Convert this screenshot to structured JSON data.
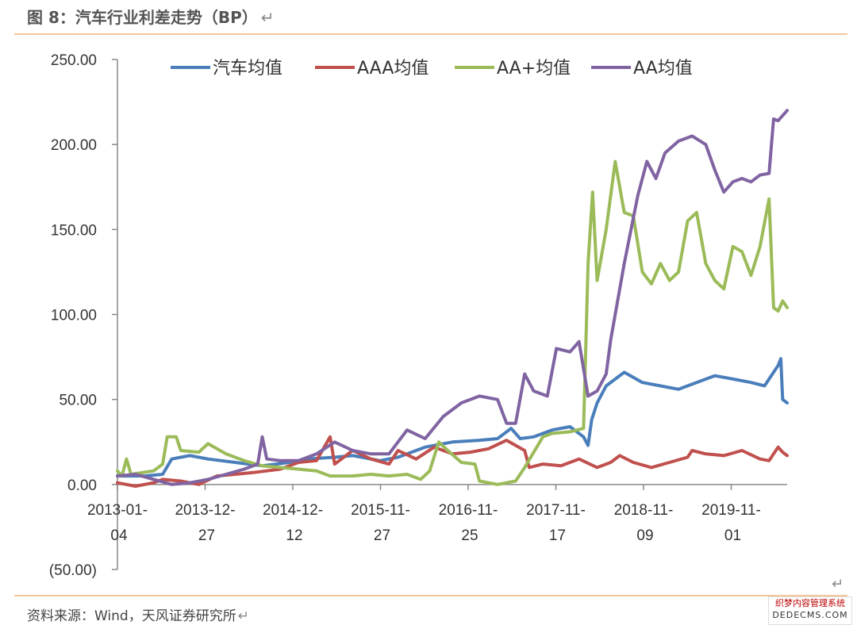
{
  "figure": {
    "title": "图 8：汽车行业利差走势（BP）",
    "title_return_mark": "↵",
    "source": "资料来源：Wind，天风证券研究所",
    "source_return_mark": "↵",
    "corner_return_mark": "↵",
    "watermark_line1": "织梦内容管理系统",
    "watermark_line2": "DEDECMS.COM"
  },
  "chart_data": {
    "type": "line",
    "title": "汽车行业利差走势（BP）",
    "xlabel": "",
    "ylabel": "",
    "ylim": [
      -50,
      250
    ],
    "y_ticks": [
      250,
      200,
      150,
      100,
      50,
      0,
      -50
    ],
    "y_tick_labels": [
      "250.00",
      "200.00",
      "150.00",
      "100.00",
      "50.00",
      "0.00",
      "(50.00)"
    ],
    "y_tick_colors": [
      "#333333",
      "#333333",
      "#333333",
      "#333333",
      "#333333",
      "#333333",
      "#e03030"
    ],
    "x_tick_labels": [
      [
        "2013-01-",
        "04"
      ],
      [
        "2013-12-",
        "27"
      ],
      [
        "2014-12-",
        "12"
      ],
      [
        "2015-11-",
        "27"
      ],
      [
        "2016-11-",
        "25"
      ],
      [
        "2017-11-",
        "17"
      ],
      [
        "2018-11-",
        "09"
      ],
      [
        "2019-11-",
        "01"
      ]
    ],
    "x_start": 2013.0,
    "x_end": 2020.4,
    "legend_position": "top",
    "series": [
      {
        "name": "汽车均值",
        "color": "#4a7ebb",
        "points": [
          [
            2013.0,
            5
          ],
          [
            2013.3,
            5
          ],
          [
            2013.5,
            6
          ],
          [
            2013.6,
            15
          ],
          [
            2013.8,
            17
          ],
          [
            2014.0,
            15
          ],
          [
            2014.3,
            13
          ],
          [
            2014.6,
            11
          ],
          [
            2014.9,
            13
          ],
          [
            2015.1,
            15
          ],
          [
            2015.4,
            16
          ],
          [
            2015.6,
            17
          ],
          [
            2015.9,
            14
          ],
          [
            2016.1,
            16
          ],
          [
            2016.4,
            22
          ],
          [
            2016.7,
            25
          ],
          [
            2017.0,
            26
          ],
          [
            2017.2,
            27
          ],
          [
            2017.35,
            33
          ],
          [
            2017.45,
            27
          ],
          [
            2017.6,
            28
          ],
          [
            2017.8,
            32
          ],
          [
            2018.0,
            34
          ],
          [
            2018.15,
            28
          ],
          [
            2018.2,
            23
          ],
          [
            2018.24,
            38
          ],
          [
            2018.3,
            48
          ],
          [
            2018.4,
            58
          ],
          [
            2018.6,
            66
          ],
          [
            2018.8,
            60
          ],
          [
            2019.0,
            58
          ],
          [
            2019.2,
            56
          ],
          [
            2019.4,
            60
          ],
          [
            2019.6,
            64
          ],
          [
            2019.8,
            62
          ],
          [
            2020.0,
            60
          ],
          [
            2020.15,
            58
          ],
          [
            2020.2,
            62
          ],
          [
            2020.3,
            70
          ],
          [
            2020.33,
            74
          ],
          [
            2020.35,
            50
          ],
          [
            2020.4,
            48
          ]
        ]
      },
      {
        "name": "AAA均值",
        "color": "#c0504d",
        "points": [
          [
            2013.0,
            1
          ],
          [
            2013.2,
            -1
          ],
          [
            2013.4,
            1
          ],
          [
            2013.5,
            3
          ],
          [
            2013.7,
            2
          ],
          [
            2013.9,
            0
          ],
          [
            2014.1,
            5
          ],
          [
            2014.3,
            6
          ],
          [
            2014.5,
            7
          ],
          [
            2014.8,
            9
          ],
          [
            2015.0,
            13
          ],
          [
            2015.2,
            14
          ],
          [
            2015.35,
            28
          ],
          [
            2015.4,
            12
          ],
          [
            2015.6,
            20
          ],
          [
            2015.8,
            15
          ],
          [
            2016.0,
            12
          ],
          [
            2016.1,
            20
          ],
          [
            2016.3,
            15
          ],
          [
            2016.5,
            22
          ],
          [
            2016.7,
            18
          ],
          [
            2016.9,
            19
          ],
          [
            2017.1,
            21
          ],
          [
            2017.3,
            26
          ],
          [
            2017.5,
            20
          ],
          [
            2017.55,
            10
          ],
          [
            2017.7,
            12
          ],
          [
            2017.9,
            11
          ],
          [
            2018.1,
            15
          ],
          [
            2018.3,
            10
          ],
          [
            2018.45,
            13
          ],
          [
            2018.55,
            17
          ],
          [
            2018.7,
            13
          ],
          [
            2018.9,
            10
          ],
          [
            2019.1,
            13
          ],
          [
            2019.3,
            16
          ],
          [
            2019.35,
            20
          ],
          [
            2019.5,
            18
          ],
          [
            2019.7,
            17
          ],
          [
            2019.9,
            20
          ],
          [
            2020.1,
            15
          ],
          [
            2020.2,
            14
          ],
          [
            2020.3,
            22
          ],
          [
            2020.35,
            19
          ],
          [
            2020.4,
            17
          ]
        ]
      },
      {
        "name": "AA+均值",
        "color": "#9bbb59",
        "points": [
          [
            2013.0,
            8
          ],
          [
            2013.05,
            5
          ],
          [
            2013.1,
            15
          ],
          [
            2013.15,
            6
          ],
          [
            2013.4,
            8
          ],
          [
            2013.5,
            12
          ],
          [
            2013.55,
            28
          ],
          [
            2013.65,
            28
          ],
          [
            2013.7,
            20
          ],
          [
            2013.9,
            19
          ],
          [
            2014.0,
            24
          ],
          [
            2014.2,
            18
          ],
          [
            2014.4,
            14
          ],
          [
            2014.6,
            11
          ],
          [
            2014.8,
            10
          ],
          [
            2015.0,
            9
          ],
          [
            2015.2,
            8
          ],
          [
            2015.35,
            5
          ],
          [
            2015.6,
            5
          ],
          [
            2015.8,
            6
          ],
          [
            2016.0,
            5
          ],
          [
            2016.2,
            6
          ],
          [
            2016.35,
            3
          ],
          [
            2016.45,
            8
          ],
          [
            2016.55,
            25
          ],
          [
            2016.65,
            20
          ],
          [
            2016.8,
            13
          ],
          [
            2016.95,
            12
          ],
          [
            2017.0,
            2
          ],
          [
            2017.2,
            0
          ],
          [
            2017.4,
            2
          ],
          [
            2017.5,
            10
          ],
          [
            2017.7,
            28
          ],
          [
            2017.8,
            30
          ],
          [
            2018.0,
            31
          ],
          [
            2018.15,
            33
          ],
          [
            2018.2,
            130
          ],
          [
            2018.25,
            172
          ],
          [
            2018.3,
            120
          ],
          [
            2018.4,
            150
          ],
          [
            2018.5,
            190
          ],
          [
            2018.6,
            160
          ],
          [
            2018.7,
            158
          ],
          [
            2018.8,
            125
          ],
          [
            2018.9,
            118
          ],
          [
            2019.0,
            130
          ],
          [
            2019.1,
            120
          ],
          [
            2019.2,
            125
          ],
          [
            2019.3,
            155
          ],
          [
            2019.4,
            160
          ],
          [
            2019.5,
            130
          ],
          [
            2019.6,
            120
          ],
          [
            2019.7,
            115
          ],
          [
            2019.8,
            140
          ],
          [
            2019.9,
            137
          ],
          [
            2020.0,
            123
          ],
          [
            2020.1,
            140
          ],
          [
            2020.2,
            168
          ],
          [
            2020.25,
            104
          ],
          [
            2020.3,
            102
          ],
          [
            2020.35,
            108
          ],
          [
            2020.4,
            104
          ]
        ]
      },
      {
        "name": "AA均值",
        "color": "#8064a2",
        "points": [
          [
            2013.0,
            5
          ],
          [
            2013.2,
            6
          ],
          [
            2013.4,
            3
          ],
          [
            2013.6,
            0
          ],
          [
            2013.8,
            1
          ],
          [
            2014.0,
            3
          ],
          [
            2014.2,
            6
          ],
          [
            2014.4,
            9
          ],
          [
            2014.55,
            12
          ],
          [
            2014.6,
            28
          ],
          [
            2014.65,
            15
          ],
          [
            2014.8,
            14
          ],
          [
            2015.0,
            14
          ],
          [
            2015.2,
            18
          ],
          [
            2015.4,
            25
          ],
          [
            2015.6,
            20
          ],
          [
            2015.8,
            18
          ],
          [
            2016.0,
            18
          ],
          [
            2016.2,
            32
          ],
          [
            2016.4,
            27
          ],
          [
            2016.6,
            40
          ],
          [
            2016.8,
            48
          ],
          [
            2017.0,
            52
          ],
          [
            2017.2,
            50
          ],
          [
            2017.3,
            36
          ],
          [
            2017.4,
            36
          ],
          [
            2017.5,
            65
          ],
          [
            2017.6,
            55
          ],
          [
            2017.75,
            52
          ],
          [
            2017.85,
            80
          ],
          [
            2018.0,
            78
          ],
          [
            2018.1,
            84
          ],
          [
            2018.2,
            52
          ],
          [
            2018.3,
            55
          ],
          [
            2018.4,
            65
          ],
          [
            2018.45,
            85
          ],
          [
            2018.6,
            130
          ],
          [
            2018.75,
            170
          ],
          [
            2018.85,
            190
          ],
          [
            2018.95,
            180
          ],
          [
            2019.05,
            195
          ],
          [
            2019.2,
            202
          ],
          [
            2019.35,
            205
          ],
          [
            2019.5,
            200
          ],
          [
            2019.6,
            185
          ],
          [
            2019.7,
            172
          ],
          [
            2019.8,
            178
          ],
          [
            2019.9,
            180
          ],
          [
            2020.0,
            178
          ],
          [
            2020.1,
            182
          ],
          [
            2020.2,
            183
          ],
          [
            2020.25,
            215
          ],
          [
            2020.3,
            214
          ],
          [
            2020.35,
            217
          ],
          [
            2020.4,
            220
          ]
        ]
      }
    ]
  }
}
